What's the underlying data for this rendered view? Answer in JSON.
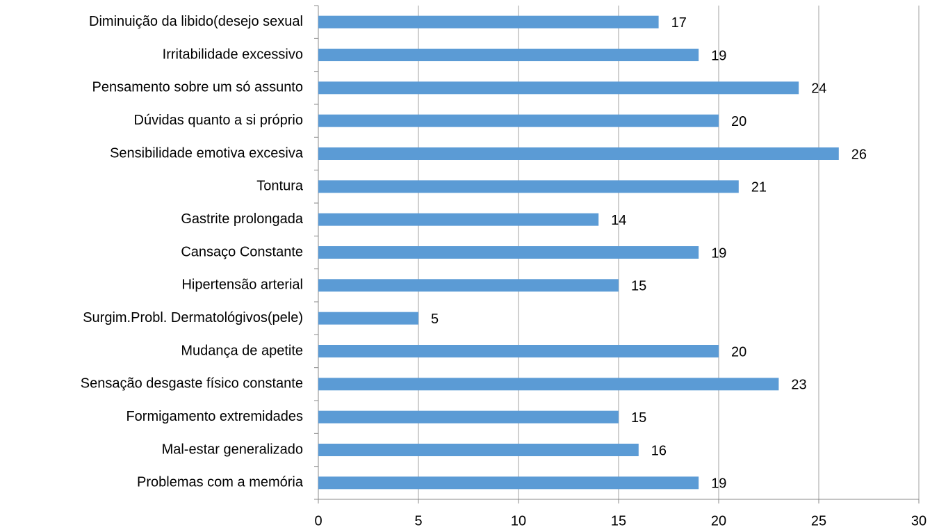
{
  "chart_data": {
    "type": "bar",
    "orientation": "horizontal",
    "categories": [
      "Diminuição da libido(desejo sexual",
      "Irritabilidade excessivo",
      "Pensamento sobre um só assunto",
      "Dúvidas quanto a si próprio",
      "Sensibilidade emotiva excesiva",
      "Tontura",
      "Gastrite prolongada",
      "Cansaço Constante",
      "Hipertensão arterial",
      "Surgim.Probl. Dermatológivos(pele)",
      "Mudança de apetite",
      "Sensação desgaste físico constante",
      "Formigamento extremidades",
      "Mal-estar generalizado",
      "Problemas com a memória"
    ],
    "values": [
      17,
      19,
      24,
      20,
      26,
      21,
      14,
      19,
      15,
      5,
      20,
      23,
      15,
      16,
      19
    ],
    "color": "#5b9bd5",
    "xlim": [
      0,
      30
    ],
    "xticks": [
      0,
      5,
      10,
      15,
      20,
      25,
      30
    ],
    "grid": true
  }
}
